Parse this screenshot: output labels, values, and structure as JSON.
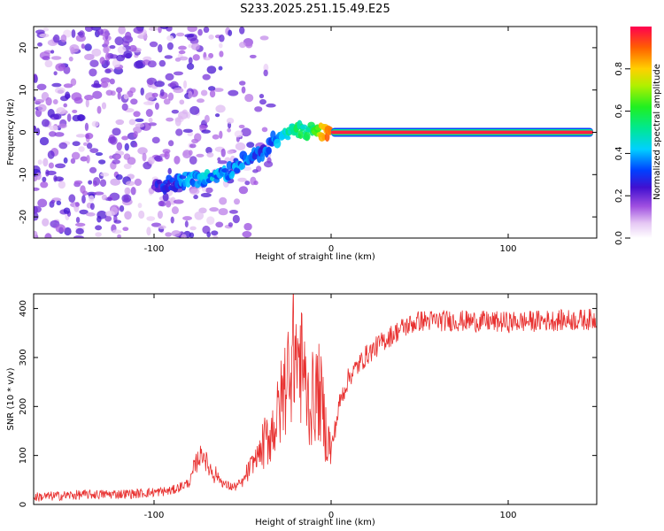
{
  "title": "S233.2025.251.15.49.E25",
  "chart_data": [
    {
      "type": "heatmap",
      "xlabel": "Height of straight line (km)",
      "ylabel": "Frequency (Hz)",
      "xlim": [
        -168,
        150
      ],
      "ylim": [
        -25,
        25
      ],
      "xticks": [
        -100,
        0,
        100
      ],
      "yticks": [
        -20,
        -10,
        0,
        10,
        20
      ],
      "colorbar": {
        "label": "Normalized spectral amplitude",
        "range": [
          0,
          1
        ],
        "ticks": [
          0.0,
          0.2,
          0.4,
          0.6,
          0.8
        ]
      },
      "dominant_ridge": {
        "x": [
          -100,
          -90,
          -80,
          -70,
          -60,
          -50,
          -40,
          -35,
          -30,
          -25,
          -20,
          -15,
          -10,
          -5,
          0,
          10,
          50,
          100,
          150
        ],
        "frequency": [
          -13,
          -12,
          -11,
          -11,
          -10,
          -7,
          -5,
          -3,
          -1,
          0,
          1,
          0,
          1,
          0,
          0,
          0,
          0,
          0,
          0
        ],
        "amplitude": [
          0.25,
          0.3,
          0.35,
          0.4,
          0.35,
          0.35,
          0.3,
          0.35,
          0.4,
          0.45,
          0.55,
          0.5,
          0.6,
          0.8,
          0.95,
          1.0,
          1.0,
          1.0,
          1.0
        ]
      }
    },
    {
      "type": "line",
      "xlabel": "Height of straight line (km)",
      "ylabel": "SNR (10 * v/v)",
      "xlim": [
        -168,
        150
      ],
      "ylim": [
        0,
        430
      ],
      "xticks": [
        -100,
        0,
        100
      ],
      "yticks": [
        0,
        100,
        200,
        300,
        400
      ],
      "series": [
        {
          "name": "SNR",
          "color": "#e8302f",
          "x": [
            -168,
            -140,
            -110,
            -90,
            -80,
            -75,
            -72,
            -70,
            -65,
            -60,
            -55,
            -50,
            -45,
            -40,
            -35,
            -30,
            -25,
            -21,
            -18,
            -15,
            -12,
            -10,
            -7,
            -5,
            -3,
            0,
            5,
            10,
            20,
            30,
            40,
            50,
            70,
            100,
            120,
            150
          ],
          "y": [
            15,
            20,
            22,
            28,
            45,
            95,
            105,
            80,
            60,
            40,
            35,
            45,
            80,
            110,
            140,
            180,
            260,
            320,
            300,
            250,
            200,
            220,
            230,
            200,
            150,
            110,
            210,
            260,
            305,
            335,
            360,
            375,
            375,
            372,
            375,
            378
          ]
        }
      ]
    }
  ]
}
